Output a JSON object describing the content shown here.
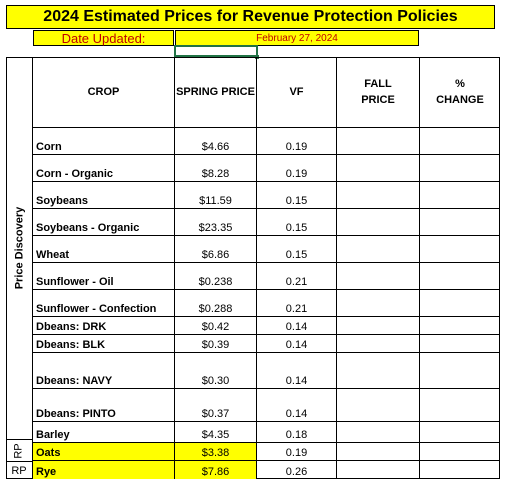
{
  "title": "2024 Estimated Prices for Revenue Protection Policies",
  "date_label": "Date Updated:",
  "date_value": "February 27, 2024",
  "side_label": "Price Discovery",
  "rp_label": "RP",
  "headers": {
    "crop": "CROP",
    "spring": "SPRING PRICE",
    "vf": "VF",
    "fall_line1": "FALL",
    "fall_line2": "PRICE",
    "change_line1": "%",
    "change_line2": "CHANGE"
  },
  "rows": [
    {
      "crop": "Corn",
      "spring": "$4.66",
      "vf": "0.19",
      "fall": "",
      "change": ""
    },
    {
      "crop": "Corn - Organic",
      "spring": "$8.28",
      "vf": "0.19",
      "fall": "",
      "change": ""
    },
    {
      "crop": "Soybeans",
      "spring": "$11.59",
      "vf": "0.15",
      "fall": "",
      "change": ""
    },
    {
      "crop": "Soybeans - Organic",
      "spring": "$23.35",
      "vf": "0.15",
      "fall": "",
      "change": ""
    },
    {
      "crop": "Wheat",
      "spring": "$6.86",
      "vf": "0.15",
      "fall": "",
      "change": ""
    },
    {
      "crop": "Sunflower - Oil",
      "spring": "$0.238",
      "vf": "0.21",
      "fall": "",
      "change": ""
    },
    {
      "crop": "Sunflower - Confection",
      "spring": "$0.288",
      "vf": "0.21",
      "fall": "",
      "change": ""
    },
    {
      "crop": "Dbeans: DRK",
      "spring": "$0.42",
      "vf": "0.14",
      "fall": "",
      "change": ""
    },
    {
      "crop": "Dbeans: BLK",
      "spring": "$0.39",
      "vf": "0.14",
      "fall": "",
      "change": ""
    },
    {
      "crop": "Dbeans: NAVY",
      "spring": "$0.30",
      "vf": "0.14",
      "fall": "",
      "change": ""
    },
    {
      "crop": "Dbeans: PINTO",
      "spring": "$0.37",
      "vf": "0.14",
      "fall": "",
      "change": ""
    },
    {
      "crop": "Barley",
      "spring": "$4.35",
      "vf": "0.18",
      "fall": "",
      "change": ""
    },
    {
      "crop": "Oats",
      "spring": "$3.38",
      "vf": "0.19",
      "fall": "",
      "change": "",
      "highlight": true
    },
    {
      "crop": "Rye",
      "spring": "$7.86",
      "vf": "0.26",
      "fall": "",
      "change": "",
      "highlight": true
    }
  ],
  "colors": {
    "title_bg": "#ffff00",
    "date_text": "#c00000",
    "selection": "#217346"
  }
}
